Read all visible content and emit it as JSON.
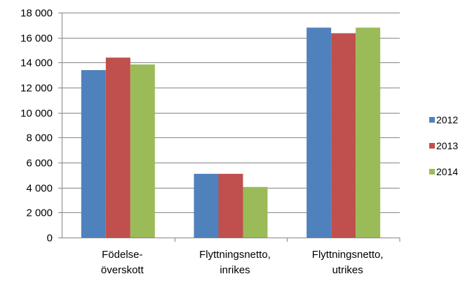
{
  "chart_data": {
    "type": "bar",
    "categories": [
      [
        "Födelse-",
        "överskott"
      ],
      [
        "Flyttningsnetto,",
        "inrikes"
      ],
      [
        "Flyttningsnetto,",
        "utrikes"
      ]
    ],
    "series": [
      {
        "name": "2012",
        "color": "#4F81BD",
        "values": [
          13400,
          5100,
          16800
        ]
      },
      {
        "name": "2013",
        "color": "#C0504D",
        "values": [
          14400,
          5100,
          16350
        ]
      },
      {
        "name": "2014",
        "color": "#9BBB59",
        "values": [
          13850,
          4050,
          16800
        ]
      }
    ],
    "ylim": [
      0,
      18000
    ],
    "y_ticks": [
      0,
      2000,
      4000,
      6000,
      8000,
      10000,
      12000,
      14000,
      16000,
      18000
    ],
    "y_tick_labels": [
      "0",
      "2 000",
      "4 000",
      "6 000",
      "8 000",
      "10 000",
      "12 000",
      "14 000",
      "16 000",
      "18 000"
    ],
    "grid": true,
    "legend_position": "right",
    "gridline_color": "#868686",
    "axis_color": "#868686"
  }
}
